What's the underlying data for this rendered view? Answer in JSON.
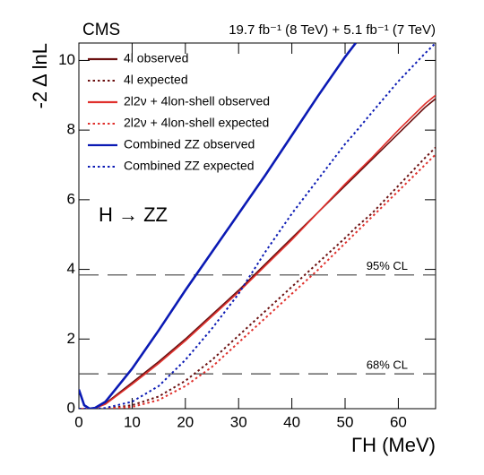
{
  "chart_data": {
    "type": "line",
    "experiment": "CMS",
    "lumi": "19.7 fb⁻¹ (8 TeV) + 5.1 fb⁻¹ (7 TeV)",
    "annotation": "H → ZZ",
    "x_label": "ΓH (MeV)",
    "y_label": "-2 Δ lnL",
    "x": [
      0,
      1,
      2,
      3,
      5,
      10,
      15,
      20,
      25,
      30,
      35,
      40,
      45,
      50,
      52,
      55,
      60,
      65,
      67
    ],
    "series": [
      {
        "name": "4l observed",
        "color": "#6b1010",
        "style": "solid",
        "values": [
          0,
          0,
          0,
          0.01,
          0.15,
          0.75,
          1.35,
          2.0,
          2.7,
          3.4,
          4.15,
          4.9,
          5.65,
          6.4,
          6.7,
          7.15,
          7.9,
          8.65,
          8.9
        ]
      },
      {
        "name": "4l expected",
        "color": "#6b1010",
        "style": "dotted",
        "values": [
          0,
          0,
          0,
          0,
          0,
          0.1,
          0.35,
          0.8,
          1.4,
          2.1,
          2.8,
          3.5,
          4.2,
          4.9,
          5.2,
          5.6,
          6.4,
          7.2,
          7.5
        ]
      },
      {
        "name": "2l2ν + 4lon-shell observed",
        "color": "#e0302c",
        "style": "solid",
        "values": [
          0,
          0,
          0,
          0.01,
          0.13,
          0.7,
          1.3,
          1.95,
          2.65,
          3.35,
          4.1,
          4.85,
          5.65,
          6.45,
          6.75,
          7.2,
          8.0,
          8.75,
          9.0
        ]
      },
      {
        "name": "2l2ν + 4lon-shell expected",
        "color": "#e0302c",
        "style": "dotted",
        "values": [
          0,
          0,
          0,
          0,
          0,
          0.05,
          0.25,
          0.65,
          1.2,
          1.9,
          2.6,
          3.3,
          4.0,
          4.75,
          5.05,
          5.5,
          6.25,
          7.0,
          7.3
        ]
      },
      {
        "name": "Combined ZZ observed",
        "color": "#0b1ab4",
        "style": "solid",
        "values": [
          0.55,
          0.1,
          0,
          0.02,
          0.2,
          1.15,
          2.25,
          3.4,
          4.5,
          5.6,
          6.7,
          7.85,
          9.0,
          10.1,
          10.5,
          null,
          null,
          null,
          null
        ]
      },
      {
        "name": "Combined ZZ expected",
        "color": "#0b1ab4",
        "style": "dotted",
        "values": [
          0,
          0,
          0,
          0,
          0.02,
          0.2,
          0.65,
          1.4,
          2.3,
          3.3,
          4.5,
          5.6,
          6.6,
          7.6,
          7.95,
          8.5,
          9.4,
          10.2,
          10.5
        ]
      }
    ],
    "reference_lines": [
      {
        "value": 3.84,
        "label": "95% CL"
      },
      {
        "value": 1,
        "label": "68% CL"
      }
    ],
    "xlim": [
      0,
      67
    ],
    "ylim": [
      0,
      10.5
    ],
    "xticks": [
      0,
      10,
      20,
      30,
      40,
      50,
      60
    ],
    "yticks": [
      0,
      2,
      4,
      6,
      8,
      10
    ],
    "legend": "upper left"
  }
}
